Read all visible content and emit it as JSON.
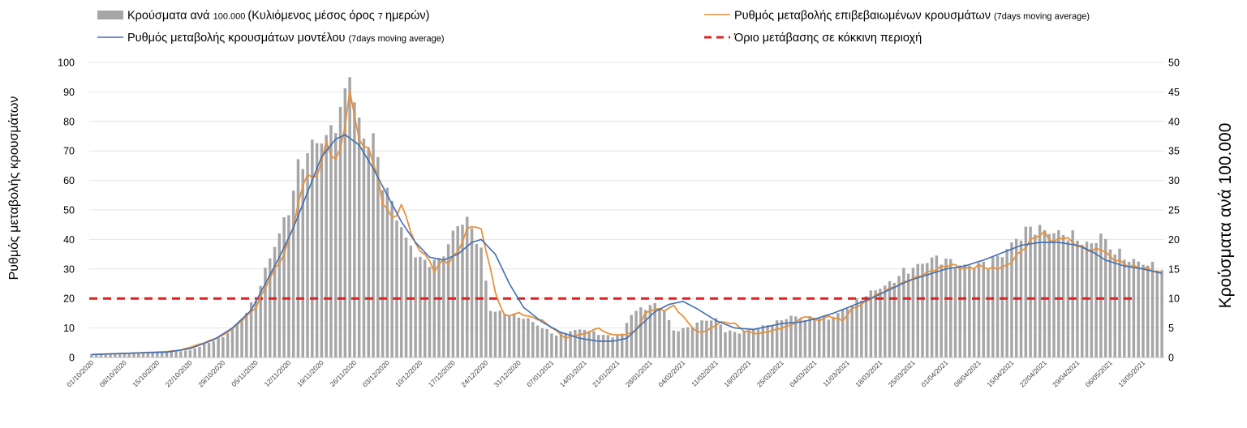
{
  "chart_data": {
    "type": "bar",
    "legend": {
      "placement": "top",
      "items": [
        {
          "key": "bars",
          "main": "Κρούσματα ανά ",
          "small": "100.000 ",
          "main2": "(Κυλιόμενος μέσος όρος ",
          "small2": "7 ",
          "main3": "ημερών)",
          "color": "#a6a6a6"
        },
        {
          "key": "confirmed",
          "main": "Ρυθμός μεταβολής επιβεβαιωμένων κρουσμάτων ",
          "small": "(7days moving average)",
          "color": "#e8913c"
        },
        {
          "key": "model",
          "main": "Ρυθμός μεταβολής κρουσμάτων μοντέλου ",
          "small": "(7days moving average)",
          "color": "#3f6fb5"
        },
        {
          "key": "threshold",
          "main": "Όριο μετάβασης σε κόκκινη περιοχή",
          "color": "#e02020"
        }
      ]
    },
    "ylabel_left": "Ρυθμός μεταβολής κρουσμάτων",
    "ylabel_right": "Κρούσματα ανά 100.000",
    "ylim_left": [
      0,
      100
    ],
    "ylim_right": [
      0,
      50
    ],
    "yticks_left": [
      "0",
      "10",
      "20",
      "30",
      "40",
      "50",
      "60",
      "70",
      "80",
      "90",
      "100"
    ],
    "yticks_right": [
      "0",
      "5",
      "10",
      "15",
      "20",
      "25",
      "30",
      "35",
      "40",
      "45",
      "50"
    ],
    "threshold_value": 20,
    "grid": true,
    "x_start": "2020-10-01",
    "x_end": "2021-05-17",
    "x_ticks": [
      "01/10/2020",
      "08/10/2020",
      "15/10/2020",
      "22/10/2020",
      "29/10/2020",
      "05/11/2020",
      "12/11/2020",
      "19/11/2020",
      "26/11/2020",
      "03/12/2020",
      "10/12/2020",
      "17/12/2020",
      "24/12/2020",
      "31/12/2020",
      "07/01/2021",
      "14/01/2021",
      "21/01/2021",
      "28/01/2021",
      "04/02/2021",
      "11/02/2021",
      "18/02/2021",
      "25/02/2021",
      "04/03/2021",
      "11/03/2021",
      "18/03/2021",
      "25/03/2021",
      "01/04/2021",
      "08/04/2021",
      "15/04/2021",
      "22/04/2021",
      "29/04/2021",
      "06/05/2021",
      "13/05/2021"
    ],
    "bars_keyframes": [
      [
        "2020-10-01",
        0.6
      ],
      [
        "2020-10-07",
        0.7
      ],
      [
        "2020-10-15",
        0.8
      ],
      [
        "2020-10-22",
        1.2
      ],
      [
        "2020-10-29",
        3.5
      ],
      [
        "2020-11-01",
        5.5
      ],
      [
        "2020-11-05",
        10
      ],
      [
        "2020-11-08",
        17
      ],
      [
        "2020-11-12",
        25
      ],
      [
        "2020-11-14",
        32
      ],
      [
        "2020-11-17",
        36
      ],
      [
        "2020-11-19",
        37
      ],
      [
        "2020-11-21",
        38
      ],
      [
        "2020-11-24",
        44
      ],
      [
        "2020-11-25",
        47
      ],
      [
        "2020-11-26",
        43
      ],
      [
        "2020-11-28",
        37
      ],
      [
        "2020-11-30",
        36
      ],
      [
        "2020-12-02",
        30
      ],
      [
        "2020-12-05",
        24
      ],
      [
        "2020-12-07",
        20
      ],
      [
        "2020-12-10",
        16.5
      ],
      [
        "2020-12-13",
        16
      ],
      [
        "2020-12-15",
        17.5
      ],
      [
        "2020-12-17",
        21
      ],
      [
        "2020-12-19",
        23.5
      ],
      [
        "2020-12-21",
        22
      ],
      [
        "2020-12-23",
        18
      ],
      [
        "2020-12-25",
        8
      ],
      [
        "2020-12-28",
        7.5
      ],
      [
        "2021-01-02",
        6.5
      ],
      [
        "2021-01-05",
        5
      ],
      [
        "2021-01-08",
        3.8
      ],
      [
        "2021-01-11",
        4.5
      ],
      [
        "2021-01-14",
        4.8
      ],
      [
        "2021-01-17",
        4
      ],
      [
        "2021-01-20",
        3.5
      ],
      [
        "2021-01-22",
        4
      ],
      [
        "2021-01-24",
        7.5
      ],
      [
        "2021-01-27",
        8.5
      ],
      [
        "2021-01-29",
        9
      ],
      [
        "2021-01-31",
        8
      ],
      [
        "2021-02-02",
        4.5
      ],
      [
        "2021-02-05",
        5
      ],
      [
        "2021-02-08",
        6.2
      ],
      [
        "2021-02-11",
        6.5
      ],
      [
        "2021-02-13",
        4.5
      ],
      [
        "2021-02-16",
        4.2
      ],
      [
        "2021-02-20",
        5
      ],
      [
        "2021-02-24",
        6
      ],
      [
        "2021-02-27",
        7
      ],
      [
        "2021-03-02",
        6.5
      ],
      [
        "2021-03-05",
        7
      ],
      [
        "2021-03-07",
        6.5
      ],
      [
        "2021-03-10",
        8
      ],
      [
        "2021-03-14",
        10
      ],
      [
        "2021-03-17",
        11.5
      ],
      [
        "2021-03-20",
        12.5
      ],
      [
        "2021-03-23",
        14.5
      ],
      [
        "2021-03-26",
        15.5
      ],
      [
        "2021-03-29",
        16.8
      ],
      [
        "2021-04-01",
        16.5
      ],
      [
        "2021-04-04",
        15.5
      ],
      [
        "2021-04-07",
        15.5
      ],
      [
        "2021-04-10",
        16
      ],
      [
        "2021-04-13",
        17.5
      ],
      [
        "2021-04-16",
        20
      ],
      [
        "2021-04-19",
        22
      ],
      [
        "2021-04-22",
        21.5
      ],
      [
        "2021-04-25",
        21
      ],
      [
        "2021-04-28",
        20.5
      ],
      [
        "2021-05-01",
        19
      ],
      [
        "2021-05-04",
        20
      ],
      [
        "2021-05-07",
        18
      ],
      [
        "2021-05-10",
        16.5
      ],
      [
        "2021-05-13",
        16
      ],
      [
        "2021-05-17",
        15
      ]
    ],
    "bars_spikes": [
      [
        "2020-11-25",
        47.5
      ],
      [
        "2020-11-30",
        38
      ],
      [
        "2021-05-04",
        21
      ]
    ],
    "confirmed_keyframes": [
      [
        "2020-10-01",
        1
      ],
      [
        "2020-10-10",
        1.5
      ],
      [
        "2020-10-17",
        2
      ],
      [
        "2020-10-20",
        2.5
      ],
      [
        "2020-10-25",
        5
      ],
      [
        "2020-10-29",
        7.5
      ],
      [
        "2020-11-01",
        11
      ],
      [
        "2020-11-05",
        17
      ],
      [
        "2020-11-08",
        27
      ],
      [
        "2020-11-11",
        35
      ],
      [
        "2020-11-13",
        45
      ],
      [
        "2020-11-15",
        58
      ],
      [
        "2020-11-16",
        63
      ],
      [
        "2020-11-17",
        60
      ],
      [
        "2020-11-18",
        62
      ],
      [
        "2020-11-20",
        72
      ],
      [
        "2020-11-22",
        67
      ],
      [
        "2020-11-23",
        70
      ],
      [
        "2020-11-24",
        80
      ],
      [
        "2020-11-25",
        89
      ],
      [
        "2020-11-26",
        82
      ],
      [
        "2020-11-27",
        75
      ],
      [
        "2020-11-28",
        70
      ],
      [
        "2020-11-29",
        72
      ],
      [
        "2020-12-01",
        60
      ],
      [
        "2020-12-02",
        53
      ],
      [
        "2020-12-04",
        47
      ],
      [
        "2020-12-06",
        51
      ],
      [
        "2020-12-07",
        48
      ],
      [
        "2020-12-09",
        38
      ],
      [
        "2020-12-11",
        35
      ],
      [
        "2020-12-13",
        29.5
      ],
      [
        "2020-12-15",
        33
      ],
      [
        "2020-12-16",
        32
      ],
      [
        "2020-12-18",
        36
      ],
      [
        "2020-12-20",
        43
      ],
      [
        "2020-12-21",
        45
      ],
      [
        "2020-12-23",
        43
      ],
      [
        "2020-12-24",
        37
      ],
      [
        "2020-12-26",
        22
      ],
      [
        "2020-12-28",
        14
      ],
      [
        "2020-12-31",
        15
      ],
      [
        "2021-01-02",
        14
      ],
      [
        "2021-01-05",
        12.5
      ],
      [
        "2021-01-08",
        9
      ],
      [
        "2021-01-10",
        6.5
      ],
      [
        "2021-01-12",
        7.5
      ],
      [
        "2021-01-14",
        8
      ],
      [
        "2021-01-17",
        10
      ],
      [
        "2021-01-19",
        8
      ],
      [
        "2021-01-22",
        7.5
      ],
      [
        "2021-01-25",
        9
      ],
      [
        "2021-01-27",
        15
      ],
      [
        "2021-01-29",
        16.5
      ],
      [
        "2021-01-31",
        16
      ],
      [
        "2021-02-02",
        17.5
      ],
      [
        "2021-02-05",
        12
      ],
      [
        "2021-02-07",
        8.5
      ],
      [
        "2021-02-09",
        9
      ],
      [
        "2021-02-12",
        12
      ],
      [
        "2021-02-15",
        11.5
      ],
      [
        "2021-02-17",
        9
      ],
      [
        "2021-02-20",
        8
      ],
      [
        "2021-02-24",
        9.5
      ],
      [
        "2021-02-27",
        11
      ],
      [
        "2021-03-02",
        14
      ],
      [
        "2021-03-05",
        12.5
      ],
      [
        "2021-03-07",
        14
      ],
      [
        "2021-03-10",
        12.5
      ],
      [
        "2021-03-12",
        16.5
      ],
      [
        "2021-03-14",
        18
      ],
      [
        "2021-03-17",
        21
      ],
      [
        "2021-03-21",
        24
      ],
      [
        "2021-03-24",
        26
      ],
      [
        "2021-03-27",
        28
      ],
      [
        "2021-03-30",
        30
      ],
      [
        "2021-04-02",
        31.5
      ],
      [
        "2021-04-05",
        30
      ],
      [
        "2021-04-08",
        31
      ],
      [
        "2021-04-11",
        30
      ],
      [
        "2021-04-14",
        31
      ],
      [
        "2021-04-17",
        36
      ],
      [
        "2021-04-20",
        41
      ],
      [
        "2021-04-22",
        42
      ],
      [
        "2021-04-24",
        39
      ],
      [
        "2021-04-26",
        41
      ],
      [
        "2021-04-29",
        38
      ],
      [
        "2021-05-02",
        36
      ],
      [
        "2021-05-04",
        37
      ],
      [
        "2021-05-06",
        34
      ],
      [
        "2021-05-10",
        31
      ],
      [
        "2021-05-14",
        30
      ],
      [
        "2021-05-17",
        28.5
      ]
    ],
    "model_keyframes": [
      [
        "2020-10-01",
        1
      ],
      [
        "2020-10-10",
        1.5
      ],
      [
        "2020-10-17",
        1.8
      ],
      [
        "2020-10-22",
        3
      ],
      [
        "2020-10-27",
        6
      ],
      [
        "2020-10-31",
        10
      ],
      [
        "2020-11-04",
        16
      ],
      [
        "2020-11-07",
        25
      ],
      [
        "2020-11-10",
        34
      ],
      [
        "2020-11-13",
        44
      ],
      [
        "2020-11-16",
        56
      ],
      [
        "2020-11-19",
        68
      ],
      [
        "2020-11-22",
        74
      ],
      [
        "2020-11-24",
        75.5
      ],
      [
        "2020-11-27",
        72
      ],
      [
        "2020-11-30",
        64
      ],
      [
        "2020-12-03",
        55
      ],
      [
        "2020-12-06",
        46
      ],
      [
        "2020-12-09",
        39
      ],
      [
        "2020-12-12",
        34
      ],
      [
        "2020-12-15",
        33
      ],
      [
        "2020-12-18",
        35
      ],
      [
        "2020-12-21",
        39
      ],
      [
        "2020-12-23",
        40
      ],
      [
        "2020-12-26",
        35
      ],
      [
        "2020-12-29",
        25
      ],
      [
        "2021-01-01",
        17
      ],
      [
        "2021-01-05",
        12
      ],
      [
        "2021-01-09",
        8.5
      ],
      [
        "2021-01-13",
        6.5
      ],
      [
        "2021-01-17",
        5.5
      ],
      [
        "2021-01-20",
        5.5
      ],
      [
        "2021-01-23",
        6.5
      ],
      [
        "2021-01-26",
        11
      ],
      [
        "2021-01-29",
        15.5
      ],
      [
        "2021-02-01",
        18
      ],
      [
        "2021-02-04",
        19
      ],
      [
        "2021-02-07",
        16.5
      ],
      [
        "2021-02-11",
        12.5
      ],
      [
        "2021-02-15",
        10
      ],
      [
        "2021-02-19",
        9.5
      ],
      [
        "2021-02-22",
        10.5
      ],
      [
        "2021-02-25",
        11.5
      ],
      [
        "2021-03-01",
        12
      ],
      [
        "2021-03-04",
        13
      ],
      [
        "2021-03-08",
        15
      ],
      [
        "2021-03-12",
        17.5
      ],
      [
        "2021-03-16",
        20
      ],
      [
        "2021-03-20",
        23
      ],
      [
        "2021-03-24",
        26
      ],
      [
        "2021-03-28",
        28
      ],
      [
        "2021-04-01",
        30
      ],
      [
        "2021-04-05",
        31
      ],
      [
        "2021-04-09",
        33
      ],
      [
        "2021-04-13",
        35.5
      ],
      [
        "2021-04-17",
        38
      ],
      [
        "2021-04-21",
        39
      ],
      [
        "2021-04-25",
        39
      ],
      [
        "2021-04-29",
        38
      ],
      [
        "2021-05-02",
        36
      ],
      [
        "2021-05-05",
        33
      ],
      [
        "2021-05-09",
        31
      ],
      [
        "2021-05-13",
        30
      ],
      [
        "2021-05-17",
        28.5
      ]
    ]
  }
}
